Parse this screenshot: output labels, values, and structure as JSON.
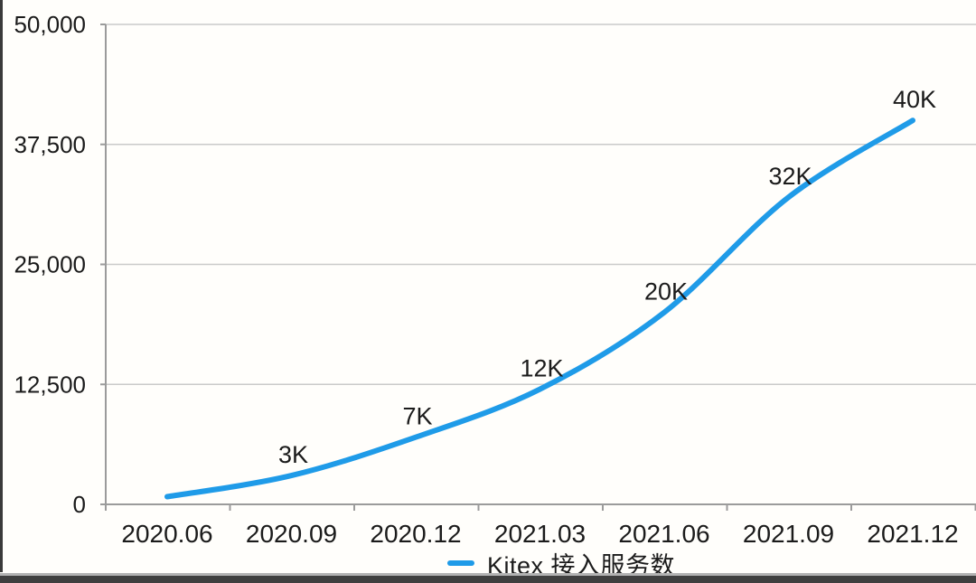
{
  "page": {
    "background": "#fffefb",
    "left_edge_color": "#3a3a3a",
    "bottom_bar_color": "#3f3f3f",
    "bottom_divider_color": "#b2b2b2"
  },
  "chart_data": {
    "type": "line",
    "title": "",
    "categories": [
      "2020.06",
      "2020.09",
      "2020.12",
      "2021.03",
      "2021.06",
      "2021.09",
      "2021.12"
    ],
    "series": [
      {
        "name": "Kitex 接入服务数",
        "values": [
          800,
          3000,
          7000,
          12000,
          20000,
          32000,
          40000
        ],
        "point_labels": [
          "",
          "3K",
          "7K",
          "12K",
          "20K",
          "32K",
          "40K"
        ],
        "color": "#1f9be8"
      }
    ],
    "xlabel": "",
    "ylabel": "",
    "ylim": [
      0,
      50000
    ],
    "y_tick_values": [
      0,
      12500,
      25000,
      37500,
      50000
    ],
    "y_tick_labels": [
      "0",
      "12,500",
      "25,000",
      "37,500",
      "50,000"
    ],
    "grid": "horizontal",
    "legend_position": "bottom"
  },
  "legend": {
    "label": "Kitex 接入服务数",
    "marker_color": "#1f9be8"
  },
  "style": {
    "grid_color": "#cacaca",
    "axis_color": "#9b9b9b",
    "tick_color": "#9b9b9b",
    "text_color": "#1b1b1b",
    "line_width": 6
  }
}
